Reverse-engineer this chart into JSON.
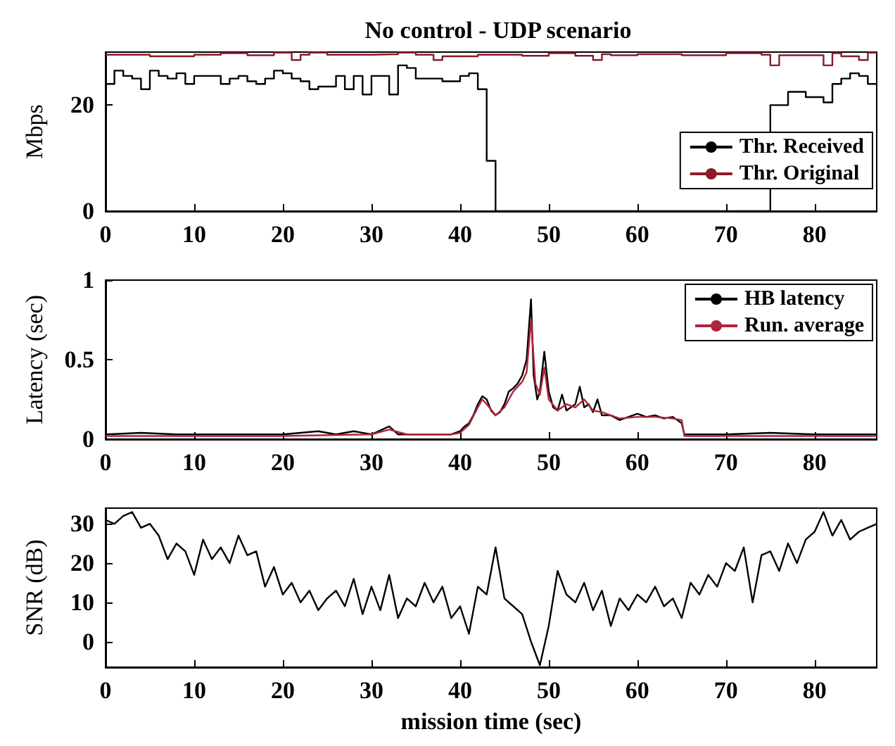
{
  "chart_data": [
    {
      "type": "step",
      "title": "No control - UDP scenario",
      "ylabel": "Mbps",
      "xlim": [
        0,
        87
      ],
      "xticks": [
        0,
        10,
        20,
        30,
        40,
        50,
        60,
        70,
        80
      ],
      "ylim": [
        0,
        30
      ],
      "yticks": [
        0,
        20
      ],
      "legend": "bottom right",
      "grid": false,
      "series": [
        {
          "name": "Thr. Received",
          "color": "#000000",
          "x": [
            0,
            1,
            2,
            3,
            4,
            5,
            6,
            7,
            8,
            9,
            10,
            11,
            12,
            13,
            14,
            15,
            16,
            17,
            18,
            19,
            20,
            21,
            22,
            23,
            24,
            25,
            26,
            27,
            28,
            29,
            30,
            31,
            32,
            33,
            34,
            35,
            36,
            37,
            38,
            39,
            40,
            41,
            42,
            43,
            44,
            75,
            77,
            79,
            81,
            82,
            83,
            84,
            85,
            86,
            87
          ],
          "values": [
            24,
            26.5,
            25.5,
            25,
            23,
            26.5,
            25.5,
            25,
            26,
            24,
            25.5,
            25.5,
            25.5,
            24,
            25,
            25.5,
            24.5,
            24,
            25,
            26.5,
            26,
            25,
            24.5,
            23,
            23.5,
            23.5,
            25.5,
            23,
            25.5,
            22,
            25.5,
            25.5,
            22,
            27.5,
            27,
            25,
            25,
            25,
            24.5,
            24.5,
            25.5,
            26,
            23,
            9.5,
            0,
            20,
            22.5,
            21.5,
            20.5,
            24,
            25,
            26,
            25.5,
            24,
            24
          ]
        },
        {
          "name": "Thr. Original",
          "color": "#8b1a2b",
          "x": [
            0,
            5,
            10,
            13,
            16,
            19,
            21,
            22,
            23,
            25,
            30,
            33,
            35,
            37,
            38,
            42,
            47,
            50,
            53,
            55,
            56,
            57,
            60,
            65,
            70,
            74,
            75,
            76,
            80,
            81,
            82,
            83,
            85,
            86,
            87
          ],
          "values": [
            29.5,
            29.2,
            29.5,
            29.8,
            29.4,
            29.9,
            28.5,
            29.5,
            29.9,
            29.5,
            29.6,
            29.9,
            29.5,
            28.5,
            29.2,
            29.5,
            29.3,
            29.8,
            29.3,
            28.5,
            29.6,
            29.4,
            29.6,
            29.4,
            29.8,
            29.5,
            27.5,
            29.4,
            29.4,
            27.5,
            29.8,
            29.2,
            28.5,
            29.9,
            29.9
          ]
        }
      ]
    },
    {
      "type": "line",
      "ylabel": "Latency (sec)",
      "xlim": [
        0,
        87
      ],
      "xticks": [
        0,
        10,
        20,
        30,
        40,
        50,
        60,
        70,
        80
      ],
      "ylim": [
        0,
        1
      ],
      "yticks": [
        0,
        0.5,
        1
      ],
      "legend": "top right",
      "grid": false,
      "series": [
        {
          "name": "HB latency",
          "color": "#000000",
          "x": [
            0,
            4,
            8,
            12,
            16,
            20,
            24,
            26,
            28,
            30,
            32,
            33,
            36,
            39,
            40,
            40.5,
            41,
            41.5,
            42,
            42.5,
            43,
            43.5,
            44,
            44.5,
            45,
            45.5,
            46,
            46.5,
            47,
            47.5,
            48,
            48.3,
            48.7,
            49,
            49.5,
            50,
            50.5,
            51,
            51.5,
            52,
            52.5,
            53,
            53.5,
            54,
            54.5,
            55,
            55.5,
            56,
            57,
            58,
            59,
            60,
            61,
            62,
            63,
            64,
            65,
            65.3,
            70,
            75,
            80,
            87
          ],
          "values": [
            0.03,
            0.04,
            0.03,
            0.03,
            0.03,
            0.03,
            0.05,
            0.03,
            0.05,
            0.03,
            0.08,
            0.03,
            0.03,
            0.03,
            0.05,
            0.08,
            0.1,
            0.15,
            0.22,
            0.27,
            0.25,
            0.18,
            0.15,
            0.17,
            0.22,
            0.3,
            0.32,
            0.35,
            0.4,
            0.5,
            0.88,
            0.4,
            0.25,
            0.3,
            0.55,
            0.3,
            0.2,
            0.18,
            0.28,
            0.18,
            0.2,
            0.22,
            0.33,
            0.2,
            0.22,
            0.17,
            0.25,
            0.15,
            0.15,
            0.12,
            0.14,
            0.16,
            0.14,
            0.15,
            0.13,
            0.14,
            0.1,
            0.03,
            0.03,
            0.04,
            0.03,
            0.03
          ]
        },
        {
          "name": "Run. average",
          "color": "#b0233c",
          "x": [
            0,
            10,
            20,
            30,
            32,
            34,
            39,
            40,
            41,
            42,
            42.5,
            43,
            44,
            45,
            46,
            47,
            47.5,
            48,
            48.5,
            49,
            49.5,
            50,
            51,
            52,
            53,
            54,
            55,
            56,
            58,
            60,
            62,
            64,
            65,
            65.3,
            75,
            87
          ],
          "values": [
            0.02,
            0.02,
            0.02,
            0.03,
            0.06,
            0.03,
            0.03,
            0.04,
            0.09,
            0.2,
            0.25,
            0.22,
            0.15,
            0.2,
            0.3,
            0.36,
            0.42,
            0.75,
            0.35,
            0.28,
            0.45,
            0.25,
            0.18,
            0.22,
            0.2,
            0.25,
            0.18,
            0.17,
            0.13,
            0.14,
            0.14,
            0.13,
            0.12,
            0.02,
            0.02,
            0.02
          ]
        }
      ]
    },
    {
      "type": "line",
      "xlabel": "mission time (sec)",
      "ylabel": "SNR (dB)",
      "xlim": [
        0,
        87
      ],
      "xticks": [
        0,
        10,
        20,
        30,
        40,
        50,
        60,
        70,
        80
      ],
      "ylim": [
        -6.5,
        34
      ],
      "yticks": [
        0,
        10,
        20,
        30
      ],
      "grid": false,
      "series": [
        {
          "color": "#000000",
          "x": [
            0,
            1,
            2,
            3,
            4,
            5,
            6,
            7,
            8,
            9,
            10,
            11,
            12,
            13,
            14,
            15,
            16,
            17,
            18,
            19,
            20,
            21,
            22,
            23,
            24,
            25,
            26,
            27,
            28,
            29,
            30,
            31,
            32,
            33,
            34,
            35,
            36,
            37,
            38,
            39,
            40,
            41,
            42,
            43,
            44,
            45,
            46,
            47,
            48,
            49,
            50,
            51,
            52,
            53,
            54,
            55,
            56,
            57,
            58,
            59,
            60,
            61,
            62,
            63,
            64,
            65,
            66,
            67,
            68,
            69,
            70,
            71,
            72,
            73,
            74,
            75,
            76,
            77,
            78,
            79,
            80,
            81,
            82,
            83,
            84,
            85,
            86,
            87
          ],
          "values": [
            31,
            30,
            32,
            33,
            29,
            30,
            27,
            21,
            25,
            23,
            17,
            26,
            21,
            24,
            20,
            27,
            22,
            23,
            14,
            19,
            12,
            15,
            10,
            13,
            8,
            11,
            13,
            9,
            16,
            7,
            14,
            8,
            17,
            6,
            11,
            9,
            15,
            10,
            14,
            6,
            9,
            2,
            14,
            12,
            24,
            11,
            9,
            7,
            0,
            -6,
            4,
            18,
            12,
            10,
            15,
            8,
            13,
            4,
            11,
            8,
            12,
            10,
            14,
            9,
            11,
            6,
            15,
            12,
            17,
            14,
            20,
            18,
            24,
            10,
            22,
            23,
            18,
            25,
            20,
            26,
            28,
            33,
            27,
            31,
            26,
            28,
            29,
            30
          ]
        }
      ]
    }
  ]
}
